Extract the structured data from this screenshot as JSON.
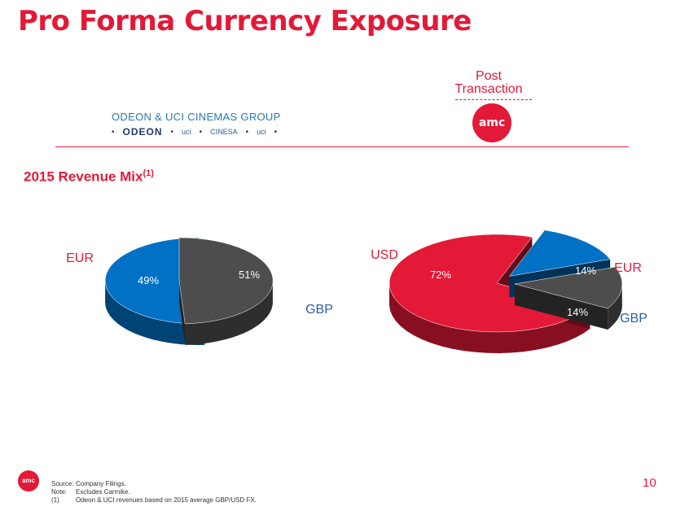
{
  "title": "Pro Forma Currency Exposure",
  "post_transaction": {
    "line1": "Post",
    "line2": "Transaction",
    "logo": "amc"
  },
  "odeon": {
    "group_name": "ODEON & UCI CINEMAS GROUP",
    "brands": [
      "ODEON",
      "uci",
      "CINESA",
      "uci"
    ]
  },
  "subtitle": {
    "text": "2015 Revenue Mix",
    "note": "(1)"
  },
  "chart_data": [
    {
      "type": "pie",
      "name": "",
      "categories": [
        "GBP",
        "EUR"
      ],
      "values": [
        51,
        49
      ],
      "value_labels": [
        "51%",
        "49%"
      ],
      "colors": [
        "#0071c5",
        "#4d4d4d"
      ]
    },
    {
      "type": "pie",
      "name": "",
      "categories": [
        "USD",
        "GBP",
        "EUR"
      ],
      "values": [
        72,
        14,
        14
      ],
      "value_labels": [
        "72%",
        "14%",
        "14%"
      ],
      "colors": [
        "#e31937",
        "#0071c5",
        "#4d4d4d"
      ]
    }
  ],
  "footer": {
    "source_key": "Source:",
    "source_text": "Company Filings.",
    "note_key": "Note:",
    "note_text": "Excludes Carmike.",
    "fn_key": "(1)",
    "fn_text": "Odeon & UCI revenues based on 2015 average GBP/USD FX."
  },
  "page_number": "10",
  "footer_logo": "amc"
}
